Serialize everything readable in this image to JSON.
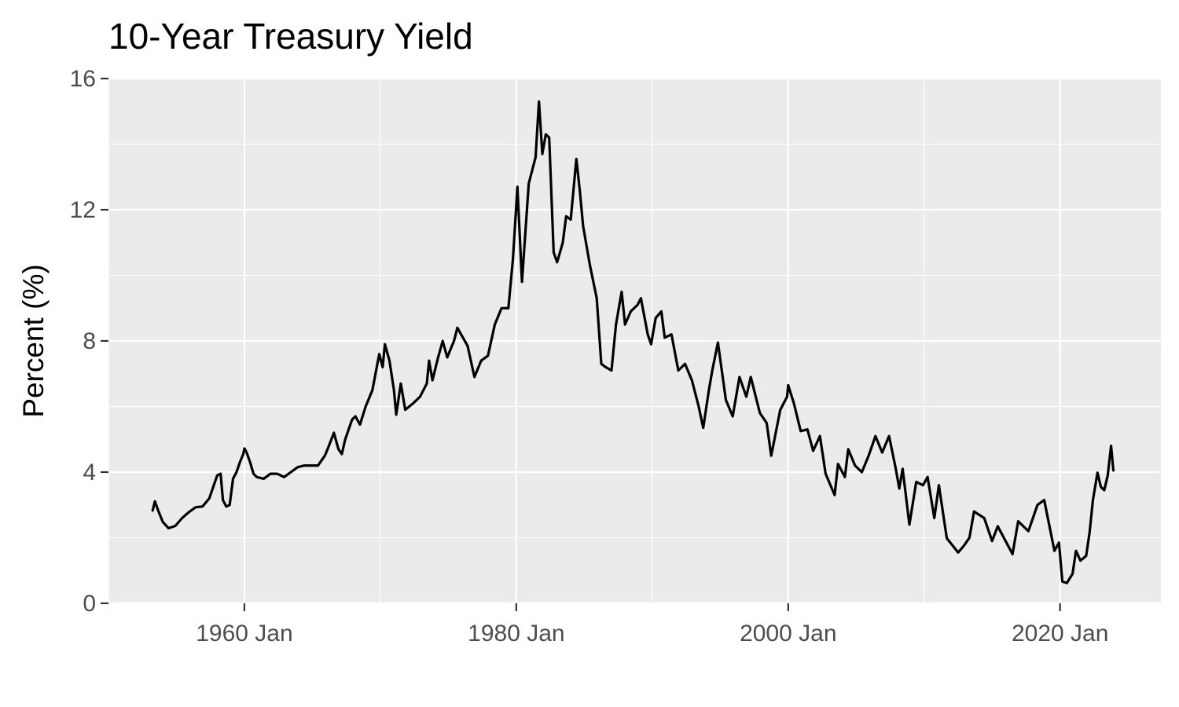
{
  "chart_data": {
    "type": "line",
    "title": "10-Year Treasury Yield",
    "xlabel": "",
    "ylabel": "Percent (%)",
    "xlim": [
      "1950-01",
      "2027-06"
    ],
    "ylim": [
      0,
      16
    ],
    "x_ticks": [
      {
        "value": "1960-01",
        "label": "1960 Jan"
      },
      {
        "value": "1980-01",
        "label": "1980 Jan"
      },
      {
        "value": "2000-01",
        "label": "2000 Jan"
      },
      {
        "value": "2020-01",
        "label": "2020 Jan"
      }
    ],
    "y_ticks": [
      0,
      4,
      8,
      12,
      16
    ],
    "grid": true,
    "legend": "none",
    "colors": {
      "panel": "#ebebeb",
      "grid": "#ffffff",
      "line": "#000000",
      "tick_label": "#4d4d4d"
    },
    "series": [
      {
        "points": [
          [
            "1953-04",
            2.83
          ],
          [
            "1953-06",
            3.11
          ],
          [
            "1953-09",
            2.82
          ],
          [
            "1954-01",
            2.48
          ],
          [
            "1954-06",
            2.29
          ],
          [
            "1954-12",
            2.36
          ],
          [
            "1955-06",
            2.6
          ],
          [
            "1955-12",
            2.78
          ],
          [
            "1956-06",
            2.93
          ],
          [
            "1956-12",
            2.95
          ],
          [
            "1957-06",
            3.2
          ],
          [
            "1957-10",
            3.6
          ],
          [
            "1958-01",
            3.9
          ],
          [
            "1958-04",
            3.95
          ],
          [
            "1958-06",
            3.15
          ],
          [
            "1958-09",
            2.95
          ],
          [
            "1958-12",
            3.0
          ],
          [
            "1959-03",
            3.8
          ],
          [
            "1959-06",
            4.0
          ],
          [
            "1959-09",
            4.3
          ],
          [
            "1959-12",
            4.55
          ],
          [
            "1960-01",
            4.72
          ],
          [
            "1960-03",
            4.6
          ],
          [
            "1960-06",
            4.3
          ],
          [
            "1960-09",
            3.95
          ],
          [
            "1960-12",
            3.85
          ],
          [
            "1961-06",
            3.8
          ],
          [
            "1961-12",
            3.95
          ],
          [
            "1962-06",
            3.95
          ],
          [
            "1962-12",
            3.85
          ],
          [
            "1963-06",
            4.0
          ],
          [
            "1963-12",
            4.15
          ],
          [
            "1964-06",
            4.2
          ],
          [
            "1964-12",
            4.2
          ],
          [
            "1965-06",
            4.2
          ],
          [
            "1965-12",
            4.5
          ],
          [
            "1966-03",
            4.75
          ],
          [
            "1966-08",
            5.2
          ],
          [
            "1966-12",
            4.7
          ],
          [
            "1967-03",
            4.55
          ],
          [
            "1967-06",
            5.0
          ],
          [
            "1967-12",
            5.6
          ],
          [
            "1968-03",
            5.7
          ],
          [
            "1968-07",
            5.45
          ],
          [
            "1968-12",
            6.0
          ],
          [
            "1969-06",
            6.5
          ],
          [
            "1969-12",
            7.6
          ],
          [
            "1970-03",
            7.2
          ],
          [
            "1970-05",
            7.9
          ],
          [
            "1970-09",
            7.4
          ],
          [
            "1971-01",
            6.5
          ],
          [
            "1971-03",
            5.75
          ],
          [
            "1971-07",
            6.7
          ],
          [
            "1971-11",
            5.9
          ],
          [
            "1972-06",
            6.1
          ],
          [
            "1972-12",
            6.3
          ],
          [
            "1973-06",
            6.7
          ],
          [
            "1973-08",
            7.4
          ],
          [
            "1973-11",
            6.8
          ],
          [
            "1974-04",
            7.5
          ],
          [
            "1974-08",
            8.0
          ],
          [
            "1974-12",
            7.5
          ],
          [
            "1975-06",
            8.0
          ],
          [
            "1975-09",
            8.4
          ],
          [
            "1976-06",
            7.85
          ],
          [
            "1976-12",
            6.9
          ],
          [
            "1977-06",
            7.4
          ],
          [
            "1977-12",
            7.55
          ],
          [
            "1978-06",
            8.5
          ],
          [
            "1978-12",
            9.0
          ],
          [
            "1979-06",
            9.0
          ],
          [
            "1979-10",
            10.5
          ],
          [
            "1980-02",
            12.7
          ],
          [
            "1980-06",
            9.8
          ],
          [
            "1980-12",
            12.8
          ],
          [
            "1981-06",
            13.6
          ],
          [
            "1981-09",
            15.3
          ],
          [
            "1981-12",
            13.7
          ],
          [
            "1982-03",
            14.3
          ],
          [
            "1982-06",
            14.2
          ],
          [
            "1982-10",
            10.7
          ],
          [
            "1983-01",
            10.4
          ],
          [
            "1983-06",
            11.0
          ],
          [
            "1983-09",
            11.8
          ],
          [
            "1984-01",
            11.7
          ],
          [
            "1984-06",
            13.55
          ],
          [
            "1984-09",
            12.6
          ],
          [
            "1984-12",
            11.5
          ],
          [
            "1985-06",
            10.3
          ],
          [
            "1985-12",
            9.3
          ],
          [
            "1986-04",
            7.3
          ],
          [
            "1986-08",
            7.2
          ],
          [
            "1987-01",
            7.1
          ],
          [
            "1987-05",
            8.5
          ],
          [
            "1987-10",
            9.5
          ],
          [
            "1988-01",
            8.5
          ],
          [
            "1988-06",
            8.9
          ],
          [
            "1988-12",
            9.1
          ],
          [
            "1989-03",
            9.3
          ],
          [
            "1989-09",
            8.2
          ],
          [
            "1989-12",
            7.9
          ],
          [
            "1990-04",
            8.7
          ],
          [
            "1990-09",
            8.9
          ],
          [
            "1990-12",
            8.1
          ],
          [
            "1991-06",
            8.2
          ],
          [
            "1991-12",
            7.1
          ],
          [
            "1992-06",
            7.3
          ],
          [
            "1992-12",
            6.8
          ],
          [
            "1993-06",
            6.0
          ],
          [
            "1993-10",
            5.35
          ],
          [
            "1994-03",
            6.5
          ],
          [
            "1994-06",
            7.1
          ],
          [
            "1994-11",
            7.95
          ],
          [
            "1995-06",
            6.2
          ],
          [
            "1995-12",
            5.7
          ],
          [
            "1996-06",
            6.9
          ],
          [
            "1996-12",
            6.3
          ],
          [
            "1997-04",
            6.9
          ],
          [
            "1997-12",
            5.8
          ],
          [
            "1998-06",
            5.5
          ],
          [
            "1998-10",
            4.5
          ],
          [
            "1999-06",
            5.9
          ],
          [
            "1999-12",
            6.3
          ],
          [
            "2000-01",
            6.65
          ],
          [
            "2000-06",
            6.1
          ],
          [
            "2000-12",
            5.25
          ],
          [
            "2001-06",
            5.3
          ],
          [
            "2001-11",
            4.65
          ],
          [
            "2002-05",
            5.1
          ],
          [
            "2002-10",
            3.95
          ],
          [
            "2003-06",
            3.3
          ],
          [
            "2003-09",
            4.25
          ],
          [
            "2004-03",
            3.85
          ],
          [
            "2004-06",
            4.7
          ],
          [
            "2004-12",
            4.2
          ],
          [
            "2005-06",
            4.0
          ],
          [
            "2005-12",
            4.5
          ],
          [
            "2006-06",
            5.1
          ],
          [
            "2006-12",
            4.6
          ],
          [
            "2007-06",
            5.1
          ],
          [
            "2007-12",
            4.1
          ],
          [
            "2008-03",
            3.5
          ],
          [
            "2008-06",
            4.1
          ],
          [
            "2008-12",
            2.4
          ],
          [
            "2009-06",
            3.7
          ],
          [
            "2009-12",
            3.6
          ],
          [
            "2010-04",
            3.85
          ],
          [
            "2010-10",
            2.6
          ],
          [
            "2011-02",
            3.6
          ],
          [
            "2011-09",
            1.98
          ],
          [
            "2012-07",
            1.55
          ],
          [
            "2012-12",
            1.75
          ],
          [
            "2013-05",
            2.0
          ],
          [
            "2013-09",
            2.8
          ],
          [
            "2014-06",
            2.6
          ],
          [
            "2015-01",
            1.9
          ],
          [
            "2015-06",
            2.35
          ],
          [
            "2016-07",
            1.5
          ],
          [
            "2016-12",
            2.5
          ],
          [
            "2017-09",
            2.2
          ],
          [
            "2018-05",
            3.0
          ],
          [
            "2018-11",
            3.15
          ],
          [
            "2019-08",
            1.6
          ],
          [
            "2019-12",
            1.85
          ],
          [
            "2020-03",
            0.66
          ],
          [
            "2020-07",
            0.62
          ],
          [
            "2020-12",
            0.9
          ],
          [
            "2021-03",
            1.6
          ],
          [
            "2021-07",
            1.3
          ],
          [
            "2021-12",
            1.45
          ],
          [
            "2022-03",
            2.15
          ],
          [
            "2022-06",
            3.15
          ],
          [
            "2022-10",
            3.98
          ],
          [
            "2023-01",
            3.55
          ],
          [
            "2023-04",
            3.45
          ],
          [
            "2023-07",
            3.9
          ],
          [
            "2023-10",
            4.8
          ],
          [
            "2023-12",
            4.05
          ]
        ]
      }
    ]
  }
}
